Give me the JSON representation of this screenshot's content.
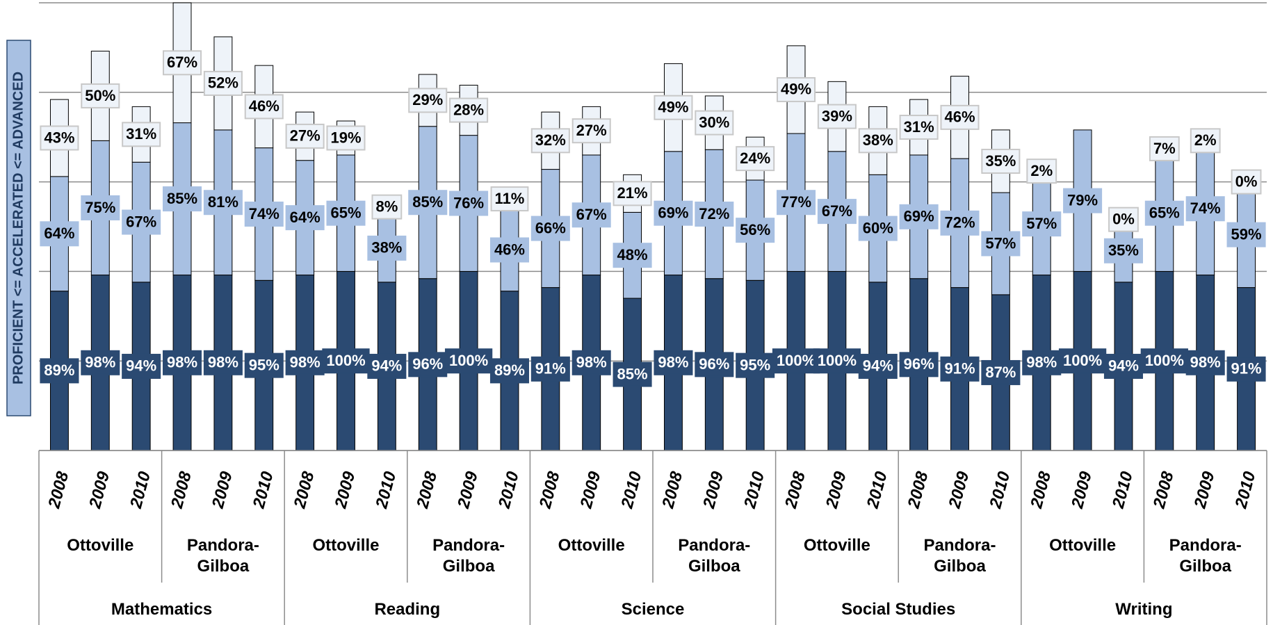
{
  "chart_data": {
    "type": "bar",
    "stacked": true,
    "ylabel": "PROFICIENT <= ACCELERATED <= ADVANCED",
    "categories": [
      "2008",
      "2009",
      "2010",
      "2008",
      "2009",
      "2010",
      "2008",
      "2009",
      "2010",
      "2008",
      "2009",
      "2010",
      "2008",
      "2009",
      "2010",
      "2008",
      "2009",
      "2010",
      "2008",
      "2009",
      "2010",
      "2008",
      "2009",
      "2010",
      "2008",
      "2009",
      "2010",
      "2008",
      "2009",
      "2010"
    ],
    "schools": [
      "Ottoville",
      "Pandora-Gilboa",
      "Ottoville",
      "Pandora-Gilboa",
      "Ottoville",
      "Pandora-Gilboa",
      "Ottoville",
      "Pandora-Gilboa",
      "Ottoville",
      "Pandora-Gilboa"
    ],
    "subjects": [
      "Mathematics",
      "Reading",
      "Science",
      "Social Studies",
      "Writing"
    ],
    "series": [
      {
        "color": "#2b4a72",
        "values": [
          89,
          98,
          94,
          98,
          98,
          95,
          98,
          100,
          94,
          96,
          100,
          89,
          91,
          98,
          85,
          98,
          96,
          95,
          100,
          100,
          94,
          96,
          91,
          87,
          98,
          100,
          94,
          100,
          98,
          91
        ],
        "value_labels": [
          "89%",
          "98%",
          "94%",
          "98%",
          "98%",
          "95%",
          "98%",
          "100%",
          "94%",
          "96%",
          "100%",
          "89%",
          "91%",
          "98%",
          "85%",
          "98%",
          "96%",
          "95%",
          "100%",
          "100%",
          "94%",
          "96%",
          "91%",
          "87%",
          "98%",
          "100%",
          "94%",
          "100%",
          "98%",
          "91%"
        ]
      },
      {
        "color": "#a8c0e2",
        "values": [
          64,
          75,
          67,
          85,
          81,
          74,
          64,
          65,
          38,
          85,
          76,
          46,
          66,
          67,
          48,
          69,
          72,
          56,
          77,
          67,
          60,
          69,
          72,
          57,
          57,
          79,
          35,
          65,
          74,
          59
        ],
        "value_labels": [
          "64%",
          "75%",
          "67%",
          "85%",
          "81%",
          "74%",
          "64%",
          "65%",
          "38%",
          "85%",
          "76%",
          "46%",
          "66%",
          "67%",
          "48%",
          "69%",
          "72%",
          "56%",
          "77%",
          "67%",
          "60%",
          "69%",
          "72%",
          "57%",
          "57%",
          "79%",
          "35%",
          "65%",
          "74%",
          "59%"
        ]
      },
      {
        "color": "#eef3f9",
        "values": [
          43,
          50,
          31,
          67,
          52,
          46,
          27,
          19,
          8,
          29,
          28,
          11,
          32,
          27,
          21,
          49,
          30,
          24,
          49,
          39,
          38,
          31,
          46,
          35,
          2,
          null,
          0,
          7,
          2,
          0
        ],
        "value_labels": [
          "43%",
          "50%",
          "31%",
          "67%",
          "52%",
          "46%",
          "27%",
          "19%",
          "8%",
          "29%",
          "28%",
          "11%",
          "32%",
          "27%",
          "21%",
          "49%",
          "30%",
          "24%",
          "49%",
          "39%",
          "38%",
          "31%",
          "46%",
          "35%",
          "2%",
          null,
          "0%",
          "7%",
          "2%",
          "0%"
        ]
      }
    ],
    "ylim": [
      0,
      250
    ],
    "yticks": [
      0,
      50,
      100,
      150,
      200,
      250
    ],
    "grid": true
  }
}
